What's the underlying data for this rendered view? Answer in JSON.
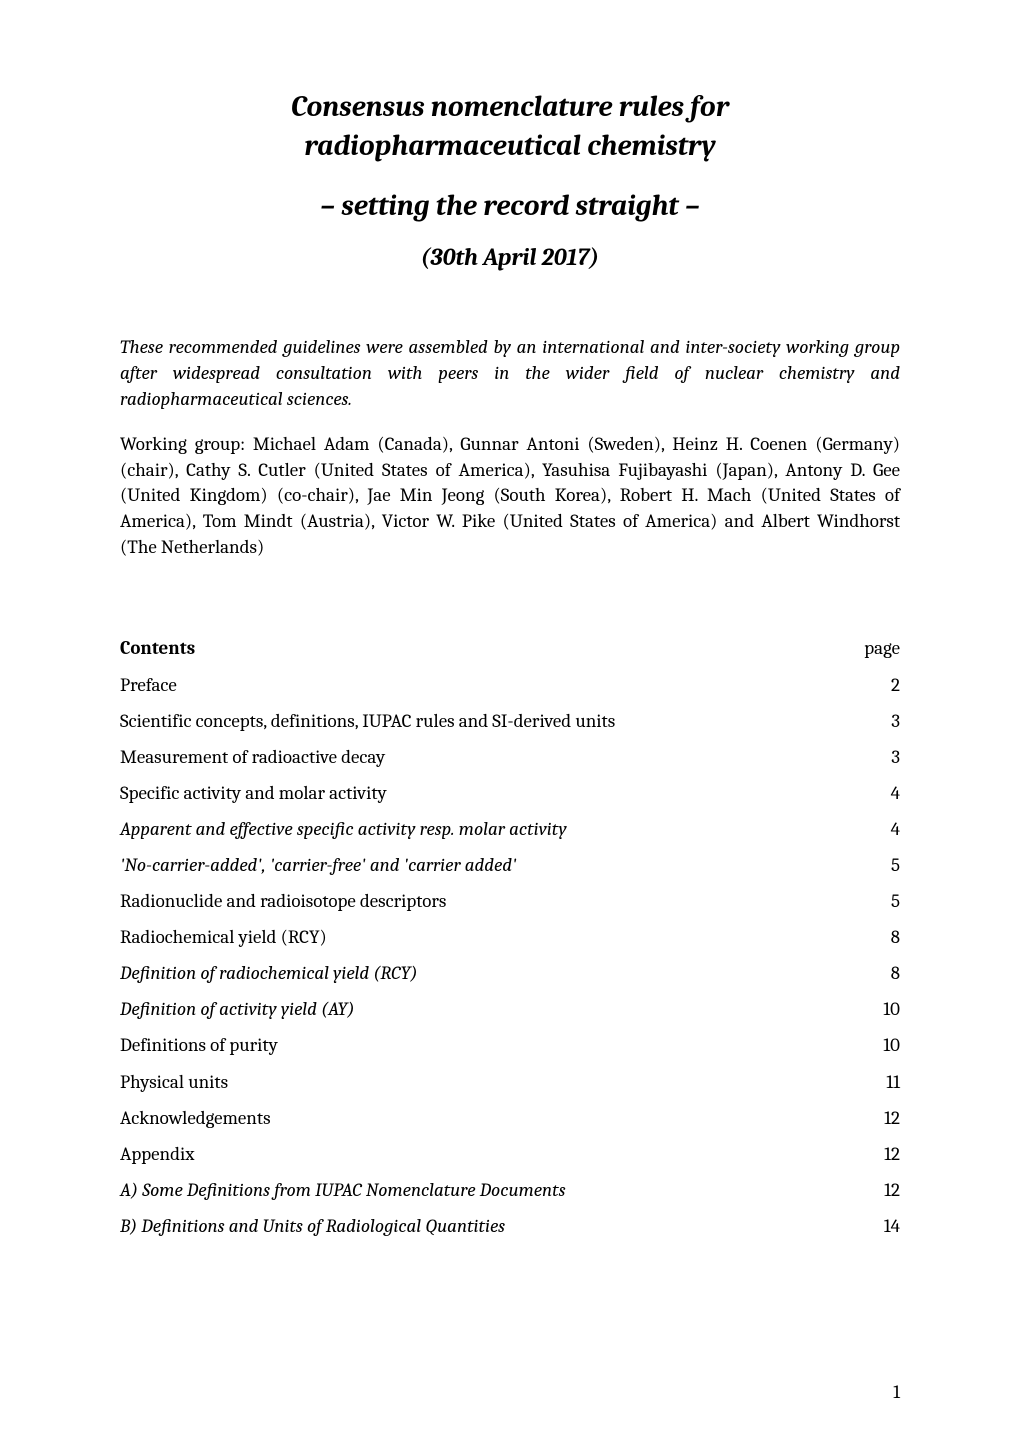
{
  "title": {
    "line1": "Consensus nomenclature rules for",
    "line2": "radiopharmaceutical chemistry",
    "subtitle": "– setting the record straight –",
    "date": "(30th April 2017)"
  },
  "intro": "These recommended guidelines were assembled by an international and inter-society working group after widespread consultation with peers in the wider field of nuclear chemistry and radiopharmaceutical sciences.",
  "working_group": "Working group: Michael Adam (Canada), Gunnar Antoni (Sweden), Heinz H. Coenen (Germany) (chair), Cathy S. Cutler (United States of America), Yasuhisa Fujibayashi (Japan), Antony D. Gee (United Kingdom) (co-chair), Jae Min Jeong (South Korea), Robert H. Mach (United States of America), Tom Mindt (Austria), Victor W. Pike (United States of America) and Albert Windhorst (The Netherlands)",
  "contents": {
    "header_label": "Contents",
    "header_page": "page",
    "items": [
      {
        "label": "Preface",
        "page": "2",
        "italic": false
      },
      {
        "label": "Scientific concepts, definitions, IUPAC rules and SI-derived units",
        "page": "3",
        "italic": false
      },
      {
        "label": "Measurement of radioactive decay",
        "page": "3",
        "italic": false
      },
      {
        "label": "Specific activity and molar activity",
        "page": "4",
        "italic": false
      },
      {
        "label": "Apparent and effective specific activity resp. molar activity",
        "page": "4",
        "italic": true
      },
      {
        "label": "'No-carrier-added', 'carrier-free' and 'carrier added'",
        "page": "5",
        "italic": true
      },
      {
        "label": "Radionuclide and radioisotope descriptors",
        "page": "5",
        "italic": false
      },
      {
        "label": "Radiochemical yield (RCY)",
        "page": "8",
        "italic": false
      },
      {
        "label": "Definition of radiochemical yield (RCY)",
        "page": "8",
        "italic": true
      },
      {
        "label": "Definition of activity yield (AY)",
        "page": "10",
        "italic": true
      },
      {
        "label": "Definitions of purity",
        "page": "10",
        "italic": false
      },
      {
        "label": "Physical units",
        "page": "11",
        "italic": false
      },
      {
        "label": "Acknowledgements",
        "page": "12",
        "italic": false
      },
      {
        "label": "Appendix",
        "page": "12",
        "italic": false
      },
      {
        "label": "A) Some Definitions from IUPAC Nomenclature Documents",
        "page": "12",
        "italic": true
      },
      {
        "label": "B) Definitions and Units of Radiological Quantities",
        "page": "14",
        "italic": true
      }
    ]
  },
  "page_number": "1",
  "styles": {
    "background_color": "#ffffff",
    "text_color": "#000000",
    "title_fontsize": 29,
    "subtitle_fontsize": 29,
    "date_fontsize": 24,
    "body_fontsize": 19,
    "contents_fontsize": 19,
    "font_family": "Cambria, Georgia, serif"
  }
}
